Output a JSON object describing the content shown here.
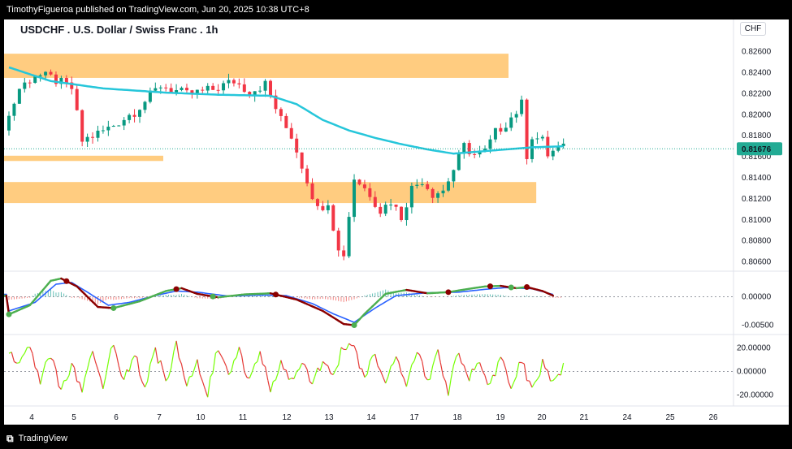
{
  "header": {
    "attribution": "TimothyFigueroa published on TradingView.com, Jun 20, 2025 10:38 UTC+8"
  },
  "legend": {
    "title": "USDCHF . U.S. Dollar / Swiss Franc . 1h"
  },
  "currency": "CHF",
  "footer": {
    "brand": "TradingView",
    "logo_icon": "tradingview-logo-icon"
  },
  "colors": {
    "bullish": "#089981",
    "bearish": "#f23645",
    "zone": "#ffcc80",
    "ma": "#26c6da",
    "macd_fast": "#4caf50",
    "macd_slow": "#2962ff",
    "macd_down": "#8b0000",
    "osc_up": "#76ff03",
    "osc_down": "#e53935",
    "price_badge": "#22ab94"
  },
  "chart_data": [
    {
      "type": "candlestick",
      "symbol": "USDCHF",
      "timeframe": "1h",
      "ylim": [
        0.8052,
        0.8272
      ],
      "price_ticks": [
        "0.82600",
        "0.82400",
        "0.82200",
        "0.82000",
        "0.81800",
        "0.81600",
        "0.81400",
        "0.81200",
        "0.81000",
        "0.80800",
        "0.80600"
      ],
      "current_price": "0.81676",
      "date_ticks": [
        "4",
        "5",
        "6",
        "7",
        "10",
        "11",
        "12",
        "13",
        "14",
        "17",
        "18",
        "19",
        "20",
        "21",
        "24",
        "25",
        "26"
      ],
      "anchors": [
        [
          0,
          0.8185
        ],
        [
          3,
          0.8225
        ],
        [
          6,
          0.8238
        ],
        [
          9,
          0.8235
        ],
        [
          13,
          0.8225
        ],
        [
          15,
          0.8175
        ],
        [
          20,
          0.8187
        ],
        [
          25,
          0.8203
        ],
        [
          30,
          0.8228
        ],
        [
          35,
          0.8219
        ],
        [
          40,
          0.8224
        ],
        [
          44,
          0.8232
        ],
        [
          47,
          0.8222
        ],
        [
          50,
          0.8229
        ],
        [
          53,
          0.8195
        ],
        [
          55,
          0.818
        ],
        [
          57,
          0.8152
        ],
        [
          60,
          0.811
        ],
        [
          62,
          0.8118
        ],
        [
          64,
          0.807
        ],
        [
          65,
          0.8068
        ],
        [
          67,
          0.814
        ],
        [
          70,
          0.8125
        ],
        [
          72,
          0.8109
        ],
        [
          74,
          0.8118
        ],
        [
          76,
          0.8103
        ],
        [
          78,
          0.813
        ],
        [
          80,
          0.8138
        ],
        [
          82,
          0.8125
        ],
        [
          84,
          0.8128
        ],
        [
          86,
          0.8148
        ],
        [
          88,
          0.817
        ],
        [
          90,
          0.8162
        ],
        [
          92,
          0.8165
        ],
        [
          94,
          0.8183
        ],
        [
          96,
          0.8192
        ],
        [
          98,
          0.8203
        ],
        [
          99,
          0.821
        ],
        [
          100,
          0.8162
        ],
        [
          101,
          0.818
        ],
        [
          103,
          0.8175
        ],
        [
          104,
          0.8162
        ],
        [
          106,
          0.8168
        ]
      ],
      "ma_anchors": [
        [
          0,
          0.8245
        ],
        [
          8,
          0.8232
        ],
        [
          18,
          0.8225
        ],
        [
          30,
          0.8221
        ],
        [
          40,
          0.8219
        ],
        [
          50,
          0.8218
        ],
        [
          55,
          0.821
        ],
        [
          60,
          0.8195
        ],
        [
          65,
          0.8185
        ],
        [
          70,
          0.8178
        ],
        [
          75,
          0.8172
        ],
        [
          80,
          0.8167
        ],
        [
          85,
          0.8163
        ],
        [
          90,
          0.8165
        ],
        [
          95,
          0.8167
        ],
        [
          100,
          0.8169
        ],
        [
          106,
          0.817
        ]
      ],
      "zones": [
        {
          "from": 0,
          "to": 95.5,
          "top": 0.8258,
          "bottom": 0.8235
        },
        {
          "from": 0,
          "to": 29.5,
          "top": 0.8161,
          "bottom": 0.8156
        },
        {
          "from": 0,
          "to": 100.8,
          "top": 0.8136,
          "bottom": 0.8116
        }
      ]
    },
    {
      "type": "macd",
      "ylim": [
        -0.0065,
        0.0042
      ],
      "ticks": [
        "0.00000",
        "-0.00500"
      ],
      "fast_anchors": [
        [
          0,
          -0.0031
        ],
        [
          4,
          -0.0015
        ],
        [
          8,
          0.0028
        ],
        [
          10,
          0.0032
        ],
        [
          13,
          0.0018
        ],
        [
          17,
          -0.0018
        ],
        [
          20,
          -0.002
        ],
        [
          25,
          -0.0008
        ],
        [
          30,
          0.001
        ],
        [
          33,
          0.0015
        ],
        [
          36,
          0.0005
        ],
        [
          40,
          -0.0001
        ],
        [
          45,
          0.0004
        ],
        [
          50,
          0.0006
        ],
        [
          55,
          -0.0005
        ],
        [
          60,
          -0.0025
        ],
        [
          64,
          -0.0048
        ],
        [
          66,
          -0.005
        ],
        [
          68,
          -0.003
        ],
        [
          72,
          0.0005
        ],
        [
          76,
          0.0012
        ],
        [
          80,
          0.0006
        ],
        [
          84,
          0.0008
        ],
        [
          88,
          0.0014
        ],
        [
          91,
          0.0018
        ],
        [
          94,
          0.0019
        ],
        [
          97,
          0.0015
        ],
        [
          99,
          0.0017
        ],
        [
          102,
          0.001
        ],
        [
          104,
          0.0002
        ]
      ],
      "slow_anchors": [
        [
          0,
          -0.0025
        ],
        [
          5,
          -0.001
        ],
        [
          9,
          0.0022
        ],
        [
          12,
          0.0025
        ],
        [
          15,
          0.0008
        ],
        [
          19,
          -0.0015
        ],
        [
          23,
          -0.001
        ],
        [
          28,
          0.0002
        ],
        [
          32,
          0.001
        ],
        [
          36,
          0.0008
        ],
        [
          42,
          0.0001
        ],
        [
          48,
          0.0003
        ],
        [
          53,
          0.0002
        ],
        [
          58,
          -0.0012
        ],
        [
          62,
          -0.003
        ],
        [
          66,
          -0.0045
        ],
        [
          70,
          -0.002
        ],
        [
          74,
          0.0002
        ],
        [
          80,
          0.0007
        ],
        [
          86,
          0.0008
        ],
        [
          91,
          0.0013
        ],
        [
          95,
          0.0016
        ],
        [
          100,
          0.0014
        ],
        [
          104,
          0.0004
        ]
      ],
      "cross_dots": [
        {
          "x": 0,
          "color": "#4caf50"
        },
        {
          "x": 11,
          "color": "#8b0000"
        },
        {
          "x": 20,
          "color": "#4caf50"
        },
        {
          "x": 32,
          "color": "#8b0000"
        },
        {
          "x": 39,
          "color": "#4caf50"
        },
        {
          "x": 51,
          "color": "#8b0000"
        },
        {
          "x": 66,
          "color": "#4caf50"
        },
        {
          "x": 84,
          "color": "#8b0000"
        },
        {
          "x": 92,
          "color": "#8b0000"
        },
        {
          "x": 96,
          "color": "#4caf50"
        },
        {
          "x": 99,
          "color": "#8b0000"
        }
      ]
    },
    {
      "type": "oscillator",
      "ylim": [
        -28,
        30
      ],
      "ticks": [
        "20.00000",
        "0.00000",
        "-20.00000"
      ],
      "anchors": [
        [
          0,
          15
        ],
        [
          2,
          8
        ],
        [
          4,
          20
        ],
        [
          6,
          -6
        ],
        [
          8,
          12
        ],
        [
          10,
          -18
        ],
        [
          12,
          4
        ],
        [
          14,
          -14
        ],
        [
          16,
          20
        ],
        [
          18,
          -10
        ],
        [
          20,
          24
        ],
        [
          22,
          -8
        ],
        [
          24,
          14
        ],
        [
          26,
          -12
        ],
        [
          28,
          18
        ],
        [
          30,
          -8
        ],
        [
          32,
          22
        ],
        [
          34,
          -14
        ],
        [
          36,
          6
        ],
        [
          38,
          -18
        ],
        [
          40,
          20
        ],
        [
          42,
          -6
        ],
        [
          44,
          18
        ],
        [
          46,
          -10
        ],
        [
          48,
          15
        ],
        [
          50,
          -16
        ],
        [
          52,
          10
        ],
        [
          54,
          -8
        ],
        [
          56,
          8
        ],
        [
          58,
          -14
        ],
        [
          60,
          12
        ],
        [
          62,
          -4
        ],
        [
          64,
          22
        ],
        [
          66,
          18
        ],
        [
          68,
          -8
        ],
        [
          70,
          16
        ],
        [
          72,
          -10
        ],
        [
          74,
          12
        ],
        [
          76,
          -12
        ],
        [
          78,
          20
        ],
        [
          80,
          -8
        ],
        [
          82,
          14
        ],
        [
          84,
          -16
        ],
        [
          86,
          18
        ],
        [
          88,
          -6
        ],
        [
          90,
          10
        ],
        [
          92,
          -14
        ],
        [
          94,
          12
        ],
        [
          96,
          -10
        ],
        [
          98,
          8
        ],
        [
          100,
          -18
        ],
        [
          102,
          6
        ],
        [
          104,
          -12
        ],
        [
          106,
          5
        ]
      ]
    }
  ]
}
